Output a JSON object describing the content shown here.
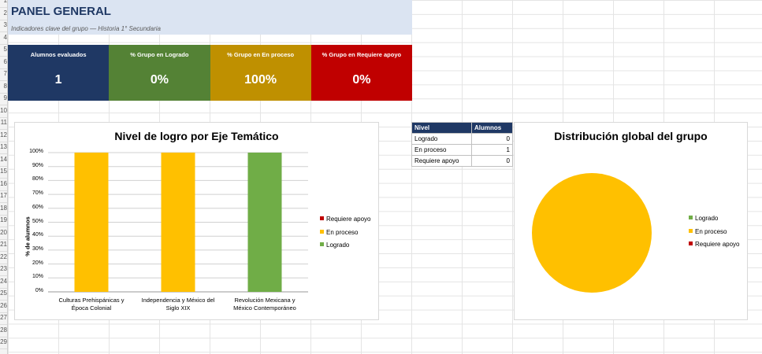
{
  "header": {
    "title": "PANEL GENERAL",
    "subtitle": "Indicadores clave del grupo — Historia 1° Secundaria"
  },
  "kpis": [
    {
      "label": "Alumnos evaluados",
      "value": "1",
      "color": "#1f3864"
    },
    {
      "label": "% Grupo en Logrado",
      "value": "0%",
      "color": "#548235"
    },
    {
      "label": "% Grupo en En proceso",
      "value": "100%",
      "color": "#bf9000"
    },
    {
      "label": "% Grupo en Requiere apoyo",
      "value": "0%",
      "color": "#c00000"
    }
  ],
  "row_numbers": [
    "1",
    "2",
    "3",
    "4",
    "5",
    "6",
    "7",
    "8",
    "9",
    "10",
    "11",
    "12",
    "13",
    "14",
    "15",
    "16",
    "17",
    "18",
    "19",
    "20",
    "21",
    "22",
    "23",
    "24",
    "25",
    "26",
    "27",
    "28",
    "29"
  ],
  "summary_table": {
    "headers": [
      "Nivel",
      "Alumnos"
    ],
    "rows": [
      {
        "nivel": "Logrado",
        "alumnos": "0"
      },
      {
        "nivel": "En proceso",
        "alumnos": "1"
      },
      {
        "nivel": "Requiere apoyo",
        "alumnos": "0"
      }
    ]
  },
  "colors": {
    "logrado": "#70ad47",
    "en_proceso": "#ffc000",
    "requiere_apoyo": "#c00000"
  },
  "chart_data": [
    {
      "type": "bar",
      "stacked": true,
      "title": "Nivel de logro por Eje Temático",
      "ylabel": "% de alumnos",
      "xlabel": "",
      "ylim": [
        0,
        1
      ],
      "yticks": [
        "0%",
        "10%",
        "20%",
        "30%",
        "40%",
        "50%",
        "60%",
        "70%",
        "80%",
        "90%",
        "100%"
      ],
      "categories": [
        [
          "Culturas Prehispánicas y",
          "Época Colonial"
        ],
        [
          "Independencia y México del",
          "Siglo XIX"
        ],
        [
          "Revolución Mexicana y",
          "México Contemporáneo"
        ]
      ],
      "series": [
        {
          "name": "Logrado",
          "values": [
            0,
            0,
            1
          ],
          "color": "#70ad47"
        },
        {
          "name": "En proceso",
          "values": [
            1,
            1,
            0
          ],
          "color": "#ffc000"
        },
        {
          "name": "Requiere apoyo",
          "values": [
            0,
            0,
            0
          ],
          "color": "#c00000"
        }
      ],
      "legend": [
        "Requiere apoyo",
        "En proceso",
        "Logrado"
      ],
      "legend_position": "right",
      "grid": true
    },
    {
      "type": "pie",
      "title": "Distribución global del grupo",
      "labels": [
        "Logrado",
        "En proceso",
        "Requiere apoyo"
      ],
      "values": [
        0,
        1,
        0
      ],
      "colors": [
        "#70ad47",
        "#ffc000",
        "#c00000"
      ],
      "legend_position": "right"
    }
  ]
}
